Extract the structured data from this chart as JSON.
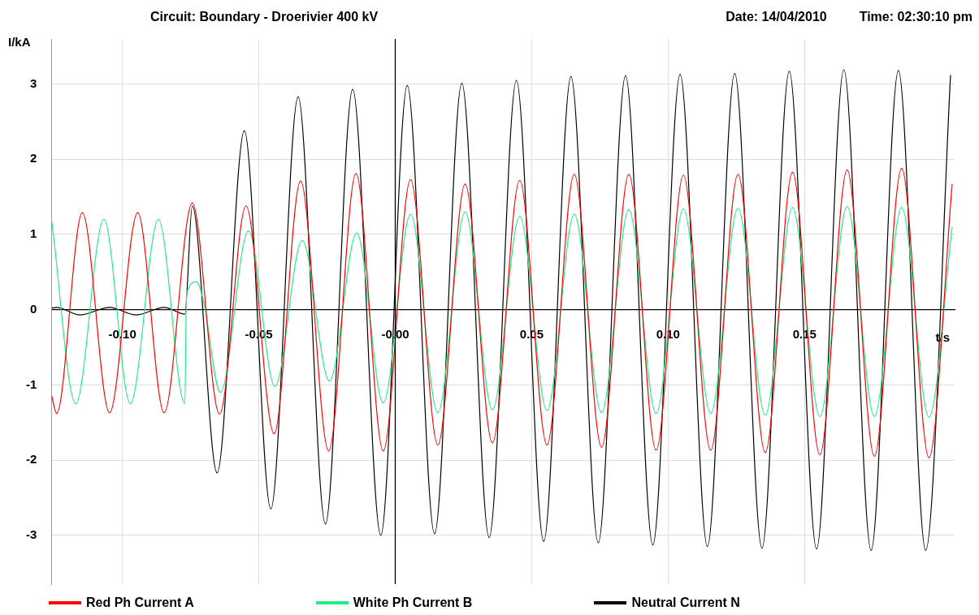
{
  "chart_data": {
    "type": "line",
    "title": "Circuit: Boundary - Droerivier 400 kV",
    "annotations": [
      "Date: 14/04/2010",
      "Time: 02:30:10 pm"
    ],
    "xlabel": "t/s",
    "ylabel": "I/kA",
    "xlim": [
      -0.126,
      0.205
    ],
    "ylim": [
      -3.65,
      3.6
    ],
    "xticks": [
      {
        "value": -0.1,
        "label": "-0.10"
      },
      {
        "value": -0.05,
        "label": "-0.05"
      },
      {
        "value": 0,
        "label": "-0.00"
      },
      {
        "value": 0.05,
        "label": "0.05"
      },
      {
        "value": 0.1,
        "label": "0.10"
      },
      {
        "value": 0.15,
        "label": "0.15"
      }
    ],
    "yticks": [
      -3,
      -2,
      -1,
      0,
      1,
      2,
      3
    ],
    "grid": true,
    "legend": "bottom",
    "marker": "none",
    "line_style": "solid",
    "ref_lines": [
      {
        "axis": "x",
        "value": 0,
        "color": "#000000"
      }
    ],
    "series": [
      {
        "name": "Red Ph Current A",
        "color": "#ff0000",
        "x": [
          -0.1259,
          -0.1241,
          -0.1147,
          -0.1047,
          -0.0944,
          -0.0847,
          -0.0744,
          -0.0644,
          -0.0547,
          -0.0444,
          -0.0347,
          -0.0244,
          -0.0144,
          -0.0044,
          0.0056,
          0.0156,
          0.0256,
          0.0356,
          0.0456,
          0.0556,
          0.0656,
          0.0756,
          0.0856,
          0.0956,
          0.1056,
          0.1156,
          0.1256,
          0.1356,
          0.1456,
          0.1556,
          0.1656,
          0.1756,
          0.1856,
          0.1956,
          0.2041
        ],
        "values": [
          -1.15,
          -1.38,
          1.29,
          -1.37,
          1.29,
          -1.37,
          1.42,
          -1.39,
          1.38,
          -1.65,
          1.71,
          -1.88,
          1.81,
          -1.88,
          1.73,
          -1.8,
          1.67,
          -1.77,
          1.72,
          -1.8,
          1.8,
          -1.83,
          1.8,
          -1.87,
          1.79,
          -1.87,
          1.8,
          -1.9,
          1.83,
          -1.93,
          1.86,
          -1.95,
          1.88,
          -1.97,
          1.67
        ]
      },
      {
        "name": "White Ph Current B",
        "color": "#22ee88",
        "x": [
          -0.1259,
          -0.1171,
          -0.1068,
          -0.0971,
          -0.0868,
          -0.0771,
          -0.0765,
          -0.0729,
          -0.0703,
          -0.0641,
          -0.0538,
          -0.0441,
          -0.0341,
          -0.0241,
          -0.0141,
          -0.0044,
          0.0056,
          0.0156,
          0.0256,
          0.0356,
          0.0456,
          0.0556,
          0.0656,
          0.0756,
          0.0856,
          0.0956,
          0.1056,
          0.1156,
          0.1256,
          0.1356,
          0.1456,
          0.1556,
          0.1656,
          0.1756,
          0.1856,
          0.1956,
          0.2041
        ],
        "values": [
          1.18,
          -1.25,
          1.2,
          -1.25,
          1.2,
          -1.25,
          0.2,
          0.37,
          0.12,
          -1.1,
          1.05,
          -1.02,
          0.92,
          -0.95,
          1.02,
          -1.24,
          1.27,
          -1.37,
          1.3,
          -1.33,
          1.24,
          -1.34,
          1.27,
          -1.37,
          1.33,
          -1.38,
          1.34,
          -1.38,
          1.35,
          -1.4,
          1.36,
          -1.42,
          1.37,
          -1.42,
          1.36,
          -1.43,
          1.1
        ]
      },
      {
        "name": "Neutral Current N",
        "color": "#000000",
        "x": [
          -0.1259,
          -0.1241,
          -0.1156,
          -0.1047,
          -0.095,
          -0.0847,
          -0.0771,
          -0.0744,
          -0.0653,
          -0.0553,
          -0.0456,
          -0.0356,
          -0.0256,
          -0.0156,
          -0.0053,
          0.0044,
          0.0144,
          0.0244,
          0.0344,
          0.0444,
          0.0544,
          0.0644,
          0.0744,
          0.0844,
          0.0944,
          0.1044,
          0.1144,
          0.1244,
          0.1344,
          0.1444,
          0.1544,
          0.1644,
          0.1744,
          0.1844,
          0.1944,
          0.2035
        ],
        "values": [
          0.02,
          0.03,
          -0.07,
          0.03,
          -0.07,
          0.03,
          -0.06,
          1.38,
          -2.17,
          2.38,
          -2.65,
          2.83,
          -2.85,
          2.93,
          -3.0,
          2.98,
          -2.98,
          3.01,
          -3.03,
          3.05,
          -3.08,
          3.1,
          -3.1,
          3.11,
          -3.13,
          3.13,
          -3.15,
          3.14,
          -3.17,
          3.17,
          -3.18,
          3.19,
          -3.2,
          3.18,
          -3.2,
          3.12
        ]
      }
    ]
  }
}
